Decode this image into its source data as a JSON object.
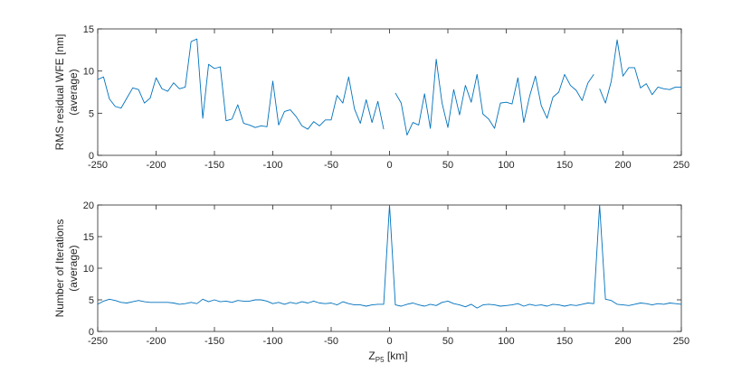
{
  "figure": {
    "xlabel_main": "Z",
    "xlabel_sub": "P5",
    "xlabel_unit": " [km]"
  },
  "chart_data": [
    {
      "type": "line",
      "ylabel": [
        "RMS residual WFE [nm]",
        "(average)"
      ],
      "xlim": [
        -250,
        250
      ],
      "ylim": [
        0,
        15
      ],
      "xticks": [
        -250,
        -200,
        -150,
        -100,
        -50,
        0,
        50,
        100,
        150,
        200,
        250
      ],
      "yticks": [
        0,
        5,
        10,
        15
      ],
      "line_color": "#0072BD",
      "series": [
        {
          "segments": [
            {
              "x": [
                -250,
                -245,
                -240,
                -235,
                -230,
                -225,
                -220,
                -215,
                -210,
                -205,
                -200,
                -195,
                -190,
                -185,
                -180,
                -175,
                -170,
                -165,
                -160,
                -155,
                -150,
                -145,
                -140,
                -135,
                -130,
                -125,
                -120,
                -115,
                -110,
                -105,
                -100,
                -95,
                -90,
                -85,
                -80,
                -75,
                -70,
                -65,
                -60,
                -55,
                -50,
                -45,
                -40,
                -35,
                -30,
                -25,
                -20,
                -15,
                -10,
                -5
              ],
              "y": [
                9.0,
                9.3,
                6.7,
                5.8,
                5.6,
                6.8,
                8.0,
                7.8,
                6.2,
                6.8,
                9.2,
                7.9,
                7.6,
                8.6,
                7.9,
                8.1,
                13.5,
                13.8,
                4.4,
                10.8,
                10.3,
                10.5,
                4.1,
                4.3,
                6.0,
                3.8,
                3.6,
                3.3,
                3.5,
                3.4,
                8.8,
                3.6,
                5.2,
                5.4,
                4.6,
                3.5,
                3.1,
                4.0,
                3.5,
                4.2,
                4.2,
                7.1,
                6.2,
                9.3,
                5.5,
                3.8,
                6.6,
                3.9,
                6.4,
                3.1
              ]
            },
            {
              "x": [
                0
              ],
              "y": [
                4.4
              ]
            },
            {
              "x": [
                5,
                10,
                15,
                20,
                25,
                30,
                35,
                40,
                45,
                50,
                55,
                60,
                65,
                70,
                75,
                80,
                85,
                90,
                95,
                100,
                105,
                110,
                115,
                120,
                125,
                130,
                135,
                140,
                145,
                150,
                155,
                160,
                165,
                170,
                175
              ],
              "y": [
                7.4,
                6.2,
                2.4,
                3.9,
                3.6,
                7.3,
                3.2,
                11.4,
                6.2,
                3.3,
                7.8,
                4.8,
                8.3,
                6.3,
                9.6,
                4.9,
                4.3,
                3.2,
                6.2,
                6.3,
                6.1,
                9.2,
                3.9,
                7.0,
                9.4,
                5.9,
                4.4,
                6.9,
                7.5,
                9.6,
                8.3,
                7.7,
                6.5,
                8.6,
                9.6
              ]
            },
            {
              "x": [
                180,
                185,
                190,
                195,
                200,
                205,
                210,
                215,
                220,
                225,
                230,
                235,
                240,
                245,
                250
              ],
              "y": [
                7.9,
                6.2,
                8.8,
                13.7,
                9.4,
                10.4,
                10.4,
                8.0,
                8.5,
                7.2,
                8.1,
                7.9,
                7.8,
                8.1,
                8.1
              ]
            }
          ]
        }
      ]
    },
    {
      "type": "line",
      "ylabel": [
        "Number of Iterations",
        "(average)"
      ],
      "xlim": [
        -250,
        250
      ],
      "ylim": [
        0,
        20
      ],
      "xticks": [
        -250,
        -200,
        -150,
        -100,
        -50,
        0,
        50,
        100,
        150,
        200,
        250
      ],
      "yticks": [
        0,
        5,
        10,
        15,
        20
      ],
      "line_color": "#0072BD",
      "series": [
        {
          "segments": [
            {
              "x": [
                -250,
                -245,
                -240,
                -235,
                -230,
                -225,
                -220,
                -215,
                -210,
                -205,
                -200,
                -195,
                -190,
                -185,
                -180,
                -175,
                -170,
                -165,
                -160,
                -155,
                -150,
                -145,
                -140,
                -135,
                -130,
                -125,
                -120,
                -115,
                -110,
                -105,
                -100,
                -95,
                -90,
                -85,
                -80,
                -75,
                -70,
                -65,
                -60,
                -55,
                -50,
                -45,
                -40,
                -35,
                -30,
                -25,
                -20,
                -15,
                -10,
                -5,
                0,
                5,
                10,
                15,
                20,
                25,
                30,
                35,
                40,
                45,
                50,
                55,
                60,
                65,
                70,
                75,
                80,
                85,
                90,
                95,
                100,
                105,
                110,
                115,
                120,
                125,
                130,
                135,
                140,
                145,
                150,
                155,
                160,
                165,
                170,
                175,
                180,
                185,
                190,
                195,
                200,
                205,
                210,
                215,
                220,
                225,
                230,
                235,
                240,
                245,
                250
              ],
              "y": [
                4.3,
                4.8,
                5.1,
                4.9,
                4.6,
                4.5,
                4.7,
                4.9,
                4.7,
                4.6,
                4.6,
                4.6,
                4.6,
                4.5,
                4.3,
                4.4,
                4.6,
                4.4,
                5.1,
                4.7,
                5.0,
                4.7,
                4.8,
                4.6,
                4.9,
                4.8,
                4.8,
                5.0,
                5.0,
                4.8,
                4.4,
                4.6,
                4.3,
                4.6,
                4.4,
                4.7,
                4.5,
                4.8,
                4.5,
                4.4,
                4.5,
                4.2,
                4.7,
                4.4,
                4.2,
                4.2,
                4.0,
                4.2,
                4.3,
                4.3,
                20.0,
                4.2,
                4.0,
                4.3,
                4.5,
                4.2,
                4.0,
                4.3,
                4.1,
                4.6,
                4.8,
                4.4,
                4.2,
                3.9,
                4.3,
                3.7,
                4.2,
                4.3,
                4.2,
                4.0,
                4.1,
                4.2,
                4.4,
                4.0,
                4.3,
                4.1,
                4.2,
                4.0,
                4.3,
                4.2,
                4.0,
                4.2,
                4.1,
                4.3,
                4.5,
                4.4,
                20.0,
                5.1,
                4.9,
                4.3,
                4.2,
                4.1,
                4.3,
                4.5,
                4.4,
                4.2,
                4.4,
                4.3,
                4.5,
                4.4,
                4.3
              ]
            }
          ]
        }
      ]
    }
  ]
}
